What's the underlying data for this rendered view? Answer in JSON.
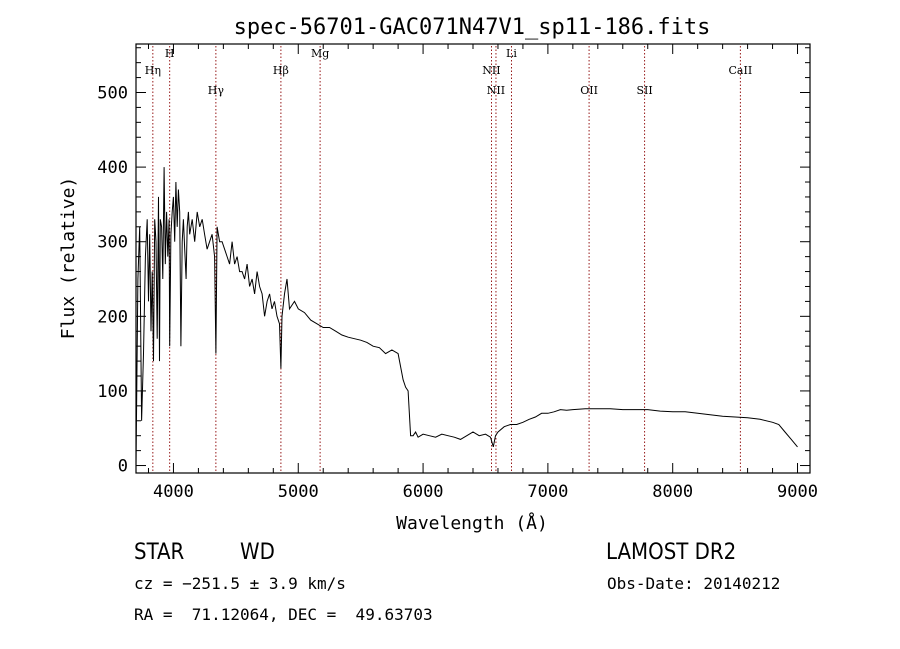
{
  "chart_data": {
    "type": "line",
    "title": "spec-56701-GAC071N47V1_sp11-186.fits",
    "xlabel": "Wavelength (Å)",
    "ylabel": "Flux (relative)",
    "xlim": [
      3700,
      9100
    ],
    "ylim": [
      -10,
      565
    ],
    "xticks": [
      4000,
      5000,
      6000,
      7000,
      8000,
      9000
    ],
    "xtick_labels": [
      "4000",
      "5000",
      "6000",
      "7000",
      "8000",
      "9000"
    ],
    "yticks": [
      0,
      100,
      200,
      300,
      400,
      500
    ],
    "ytick_labels": [
      "0",
      "100",
      "200",
      "300",
      "400",
      "500"
    ],
    "grid": false,
    "line_color": "#000000",
    "marker_color": "#8b0000",
    "series": [
      {
        "x": [
          3700,
          3715,
          3730,
          3745,
          3760,
          3775,
          3790,
          3800,
          3810,
          3820,
          3830,
          3840,
          3850,
          3860,
          3870,
          3880,
          3888,
          3895,
          3905,
          3915,
          3925,
          3935,
          3945,
          3955,
          3965,
          3970,
          3980,
          3990,
          4000,
          4010,
          4020,
          4030,
          4040,
          4050,
          4060,
          4070,
          4080,
          4090,
          4101,
          4110,
          4120,
          4130,
          4150,
          4170,
          4190,
          4210,
          4230,
          4250,
          4270,
          4290,
          4310,
          4330,
          4340,
          4350,
          4370,
          4390,
          4410,
          4430,
          4450,
          4470,
          4490,
          4510,
          4530,
          4550,
          4570,
          4590,
          4610,
          4630,
          4650,
          4670,
          4690,
          4710,
          4730,
          4750,
          4770,
          4790,
          4810,
          4830,
          4850,
          4861,
          4870,
          4890,
          4910,
          4930,
          4950,
          4970,
          5000,
          5050,
          5100,
          5150,
          5200,
          5250,
          5300,
          5350,
          5400,
          5450,
          5500,
          5550,
          5600,
          5650,
          5700,
          5750,
          5800,
          5840,
          5860,
          5880,
          5900,
          5920,
          5940,
          5960,
          6000,
          6050,
          6100,
          6150,
          6200,
          6250,
          6300,
          6350,
          6400,
          6450,
          6500,
          6540,
          6563,
          6580,
          6600,
          6650,
          6700,
          6750,
          6800,
          6850,
          6900,
          6950,
          7000,
          7050,
          7100,
          7150,
          7200,
          7300,
          7400,
          7500,
          7600,
          7700,
          7800,
          7900,
          8000,
          8100,
          8200,
          8300,
          8400,
          8500,
          8600,
          8700,
          8800,
          8850,
          8900,
          8950,
          9000
        ],
        "y": [
          0,
          250,
          320,
          60,
          150,
          280,
          330,
          220,
          310,
          180,
          260,
          140,
          330,
          300,
          170,
          360,
          140,
          330,
          320,
          250,
          400,
          270,
          340,
          280,
          330,
          160,
          310,
          340,
          360,
          300,
          380,
          320,
          370,
          340,
          160,
          300,
          330,
          290,
          250,
          320,
          340,
          310,
          330,
          300,
          340,
          320,
          330,
          310,
          290,
          300,
          310,
          280,
          150,
          320,
          300,
          300,
          290,
          280,
          270,
          300,
          270,
          280,
          260,
          260,
          250,
          270,
          240,
          250,
          230,
          260,
          240,
          230,
          200,
          220,
          230,
          210,
          220,
          200,
          190,
          130,
          200,
          230,
          250,
          210,
          215,
          220,
          210,
          205,
          195,
          190,
          185,
          185,
          180,
          175,
          172,
          170,
          168,
          165,
          160,
          158,
          150,
          155,
          150,
          115,
          105,
          100,
          40,
          40,
          45,
          38,
          42,
          40,
          38,
          42,
          40,
          38,
          35,
          40,
          45,
          40,
          42,
          38,
          25,
          40,
          45,
          52,
          55,
          55,
          58,
          62,
          65,
          70,
          70,
          72,
          75,
          74,
          75,
          76,
          76,
          76,
          75,
          75,
          75,
          73,
          72,
          72,
          70,
          68,
          66,
          65,
          64,
          62,
          58,
          55,
          45,
          35,
          25
        ]
      }
    ],
    "line_markers": [
      {
        "label": "Hη",
        "wavelength": 3835
      },
      {
        "label": "H",
        "wavelength": 3970
      },
      {
        "label": "Hγ",
        "wavelength": 4340
      },
      {
        "label": "Hβ",
        "wavelength": 4861
      },
      {
        "label": "Mg",
        "wavelength": 5175
      },
      {
        "label": "NII",
        "wavelength": 6548
      },
      {
        "label": "NII",
        "wavelength": 6584
      },
      {
        "label": "Li",
        "wavelength": 6708
      },
      {
        "label": "OII",
        "wavelength": 7330
      },
      {
        "label": "SII",
        "wavelength": 7775
      },
      {
        "label": "CaII",
        "wavelength": 8542
      }
    ]
  },
  "info": {
    "object_class": "STAR",
    "subclass": "WD",
    "survey": "LAMOST DR2",
    "redshift": "cz = −251.5 ± 3.9 km/s",
    "obs_date": "Obs-Date: 20140212",
    "coordinates": "RA =  71.12064, DEC =  49.63703"
  }
}
